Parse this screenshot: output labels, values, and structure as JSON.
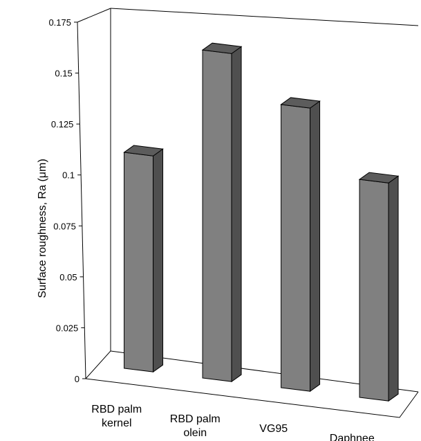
{
  "chart_data": {
    "type": "bar",
    "style": "3d",
    "categories": [
      [
        "RBD palm",
        "kernel"
      ],
      [
        "RBD palm",
        "olein"
      ],
      [
        "VG95"
      ],
      [
        "Daphnee"
      ]
    ],
    "values": [
      0.106,
      0.161,
      0.139,
      0.107
    ],
    "ylabel": "Surface roughness, Ra (μm)",
    "ylim": [
      0,
      0.175
    ],
    "yticks": [
      "0.175",
      "0.15",
      "0.125",
      "0.1",
      "0.075",
      "0.05",
      "0.025",
      "0"
    ],
    "bar_colors": {
      "front": "#808080",
      "side": "#4f4f4f",
      "top": "#5c5c5c"
    },
    "grid": false
  }
}
